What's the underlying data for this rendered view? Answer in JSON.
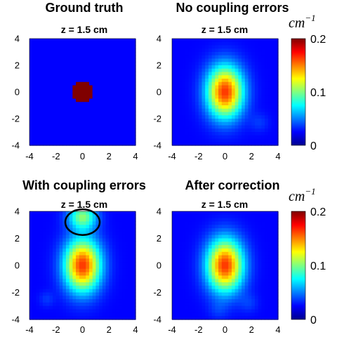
{
  "chart_data": [
    {
      "type": "heatmap",
      "title": "Ground truth",
      "subtitle": "z = 1.5 cm",
      "xticks": [
        "-4",
        "-2",
        "0",
        "2",
        "4"
      ],
      "yticks": [
        "4",
        "2",
        "0",
        "-2",
        "-4"
      ],
      "xlim": [
        -4,
        4
      ],
      "ylim": [
        -4,
        4
      ],
      "clim": [
        0,
        0.2
      ],
      "blobs": [
        {
          "x": 0,
          "y": 0,
          "sx": 0.75,
          "sy": 0.75,
          "amp": 0.2,
          "shape": "disk"
        }
      ]
    },
    {
      "type": "heatmap",
      "title": "No coupling errors",
      "subtitle": "z = 1.5 cm",
      "xticks": [
        "-4",
        "-2",
        "0",
        "2",
        "4"
      ],
      "yticks": [
        "4",
        "2",
        "0",
        "-2",
        "-4"
      ],
      "xlim": [
        -4,
        4
      ],
      "ylim": [
        -4,
        4
      ],
      "clim": [
        0,
        0.2
      ],
      "blobs": [
        {
          "x": 0,
          "y": 0,
          "sx": 0.95,
          "sy": 1.35,
          "amp": 0.16
        },
        {
          "x": 2.6,
          "y": -2.3,
          "sx": 0.5,
          "sy": 0.5,
          "amp": 0.012
        }
      ]
    },
    {
      "type": "heatmap",
      "title": "With coupling errors",
      "subtitle": "z = 1.5 cm",
      "xticks": [
        "-4",
        "-2",
        "0",
        "2",
        "4"
      ],
      "yticks": [
        "4",
        "2",
        "0",
        "-2",
        "-4"
      ],
      "xlim": [
        -4,
        4
      ],
      "ylim": [
        -4,
        4
      ],
      "clim": [
        0,
        0.2
      ],
      "annotation": {
        "type": "ellipse",
        "x": 0,
        "y": 3.2,
        "rx": 1.3,
        "ry": 0.95
      },
      "blobs": [
        {
          "x": 0,
          "y": 0,
          "sx": 0.95,
          "sy": 1.35,
          "amp": 0.16
        },
        {
          "x": 0,
          "y": 3.6,
          "sx": 0.75,
          "sy": 0.65,
          "amp": 0.085
        },
        {
          "x": -2.7,
          "y": -2.5,
          "sx": 0.4,
          "sy": 0.4,
          "amp": 0.012
        }
      ]
    },
    {
      "type": "heatmap",
      "title": "After correction",
      "subtitle": "z = 1.5 cm",
      "xticks": [
        "-4",
        "-2",
        "0",
        "2",
        "4"
      ],
      "yticks": [
        "4",
        "2",
        "0",
        "-2",
        "-4"
      ],
      "xlim": [
        -4,
        4
      ],
      "ylim": [
        -4,
        4
      ],
      "clim": [
        0,
        0.2
      ],
      "blobs": [
        {
          "x": 0,
          "y": 0,
          "sx": 0.95,
          "sy": 1.35,
          "amp": 0.16
        },
        {
          "x": 1.8,
          "y": -2.8,
          "sx": 0.5,
          "sy": 0.5,
          "amp": 0.012
        },
        {
          "x": -0.5,
          "y": -3.3,
          "sx": 0.5,
          "sy": 0.5,
          "amp": 0.01
        }
      ]
    }
  ],
  "colorbar": {
    "unit_base": "cm",
    "unit_exponent": "−1",
    "ticks": [
      "0.2",
      "0.1",
      "0"
    ],
    "colormap": "jet"
  }
}
